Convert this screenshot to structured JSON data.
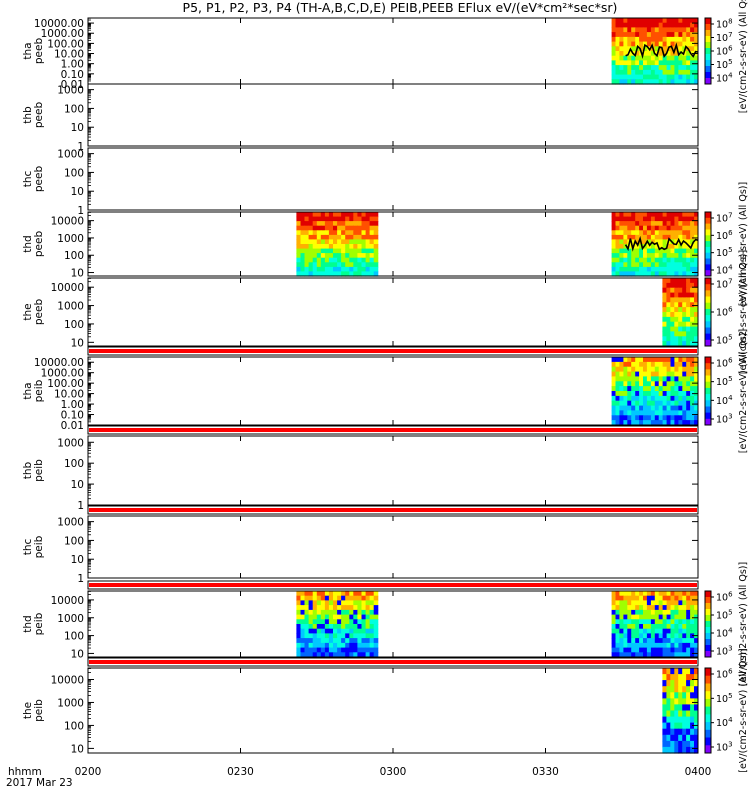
{
  "figure": {
    "title": "P5, P1, P2, P3, P4 (TH-A,B,C,D,E) PEIB,PEEB EFlux eV/(eV*cm²*sec*sr)",
    "time_unit_label": "hhmm",
    "date_label": "2017 Mar 23"
  },
  "colors": {
    "palette": [
      "#8000ff",
      "#0000ff",
      "#0066ff",
      "#00c8ff",
      "#00ffe0",
      "#00ff90",
      "#a0ff00",
      "#ffff00",
      "#ffb000",
      "#ff5000",
      "#e00000"
    ],
    "flag_bar": "#ff0000",
    "trace": "#000000"
  },
  "chart_data": {
    "type": "heatmap",
    "x_axis": {
      "ticks": [
        "0200",
        "0230",
        "0300",
        "0330",
        "0400"
      ],
      "range": [
        "02:00",
        "04:00"
      ]
    },
    "panels": [
      {
        "ylabel1": "tha",
        "ylabel2": "peeb",
        "yticks": [
          "10000.00",
          "1000.00",
          "100.00",
          "10.00",
          "1.00",
          "0.10",
          "0.01"
        ],
        "ylog": [
          -2,
          4.5
        ],
        "data_blocks": [
          {
            "start": "03:43",
            "end": "04:00"
          }
        ],
        "trace": true,
        "top_flag": false,
        "cbar_ticks": [
          {
            "label": "10",
            "exp": "8"
          },
          {
            "label": "10",
            "exp": "7"
          },
          {
            "label": "10",
            "exp": "6"
          },
          {
            "label": "10",
            "exp": "5"
          },
          {
            "label": "10",
            "exp": "4"
          }
        ],
        "cbar_label": "eV/(cm2-s-sr-eV) (All Qs)"
      },
      {
        "ylabel1": "thb",
        "ylabel2": "peeb",
        "yticks": [
          "1000",
          "100",
          "10",
          "1"
        ],
        "ylog": [
          0,
          3.3
        ],
        "data_blocks": [],
        "trace": false,
        "top_flag": false,
        "cbar_ticks": [],
        "cbar_label": ""
      },
      {
        "ylabel1": "thc",
        "ylabel2": "peeb",
        "yticks": [
          "1000",
          "100",
          "10",
          "1"
        ],
        "ylog": [
          0,
          3.3
        ],
        "data_blocks": [],
        "trace": false,
        "top_flag": false,
        "cbar_ticks": [],
        "cbar_label": ""
      },
      {
        "ylabel1": "thd",
        "ylabel2": "peeb",
        "yticks": [
          "10000",
          "1000",
          "100",
          "10"
        ],
        "ylog": [
          0.8,
          4.5
        ],
        "data_blocks": [
          {
            "start": "02:41",
            "end": "02:57"
          },
          {
            "start": "03:43",
            "end": "04:00"
          }
        ],
        "trace": true,
        "top_flag": false,
        "cbar_ticks": [
          {
            "label": "10",
            "exp": "7"
          },
          {
            "label": "10",
            "exp": "6"
          },
          {
            "label": "10",
            "exp": "5"
          },
          {
            "label": "10",
            "exp": "4"
          }
        ],
        "cbar_label": "eV/(cm2-s-sr-eV) (All Qs)"
      },
      {
        "ylabel1": "the",
        "ylabel2": "peeb",
        "yticks": [
          "10000",
          "1000",
          "100",
          "10"
        ],
        "ylog": [
          0.8,
          4.5
        ],
        "data_blocks": [
          {
            "start": "03:53",
            "end": "04:00"
          }
        ],
        "trace": false,
        "top_flag": false,
        "cbar_ticks": [
          {
            "label": "10",
            "exp": "7"
          },
          {
            "label": "10",
            "exp": "6"
          },
          {
            "label": "10",
            "exp": "5"
          }
        ],
        "cbar_label": "eV/(cm2-s-sr-eV) (All Qs)"
      },
      {
        "ylabel1": "tha",
        "ylabel2": "peib",
        "yticks": [
          "10000.00",
          "1000.00",
          "100.00",
          "10.00",
          "1.00",
          "0.10",
          "0.01"
        ],
        "ylog": [
          -2,
          4.5
        ],
        "data_blocks": [
          {
            "start": "03:43",
            "end": "04:00"
          }
        ],
        "trace": false,
        "top_flag": true,
        "cbar_ticks": [
          {
            "label": "10",
            "exp": "6"
          },
          {
            "label": "10",
            "exp": "5"
          },
          {
            "label": "10",
            "exp": "4"
          },
          {
            "label": "10",
            "exp": "3"
          }
        ],
        "cbar_label": "eV/(cm2-s-sr-eV) (All Qs)"
      },
      {
        "ylabel1": "thb",
        "ylabel2": "peib",
        "yticks": [
          "1000",
          "100",
          "10",
          "1"
        ],
        "ylog": [
          0,
          3.3
        ],
        "data_blocks": [],
        "trace": false,
        "top_flag": true,
        "cbar_ticks": [],
        "cbar_label": ""
      },
      {
        "ylabel1": "thc",
        "ylabel2": "peib",
        "yticks": [
          "1000",
          "100",
          "10",
          "1"
        ],
        "ylog": [
          0,
          3.3
        ],
        "data_blocks": [],
        "trace": false,
        "top_flag": true,
        "cbar_ticks": [],
        "cbar_label": ""
      },
      {
        "ylabel1": "thd",
        "ylabel2": "peib",
        "yticks": [
          "10000",
          "1000",
          "100",
          "10"
        ],
        "ylog": [
          0.8,
          4.5
        ],
        "data_blocks": [
          {
            "start": "02:41",
            "end": "02:57"
          },
          {
            "start": "03:43",
            "end": "04:00"
          }
        ],
        "trace": false,
        "top_flag": true,
        "cbar_ticks": [
          {
            "label": "10",
            "exp": "6"
          },
          {
            "label": "10",
            "exp": "5"
          },
          {
            "label": "10",
            "exp": "4"
          },
          {
            "label": "10",
            "exp": "3"
          }
        ],
        "cbar_label": "eV/(cm2-s-sr-eV) (All Qs)"
      },
      {
        "ylabel1": "the",
        "ylabel2": "peib",
        "yticks": [
          "10000",
          "1000",
          "100",
          "10"
        ],
        "ylog": [
          0.8,
          4.5
        ],
        "data_blocks": [
          {
            "start": "03:53",
            "end": "04:00"
          }
        ],
        "trace": false,
        "top_flag": true,
        "cbar_ticks": [
          {
            "label": "10",
            "exp": "6"
          },
          {
            "label": "10",
            "exp": "5"
          },
          {
            "label": "10",
            "exp": "4"
          },
          {
            "label": "10",
            "exp": "3"
          }
        ],
        "cbar_label": "eV/(cm2-s-sr-eV) (All Qs)"
      }
    ]
  }
}
